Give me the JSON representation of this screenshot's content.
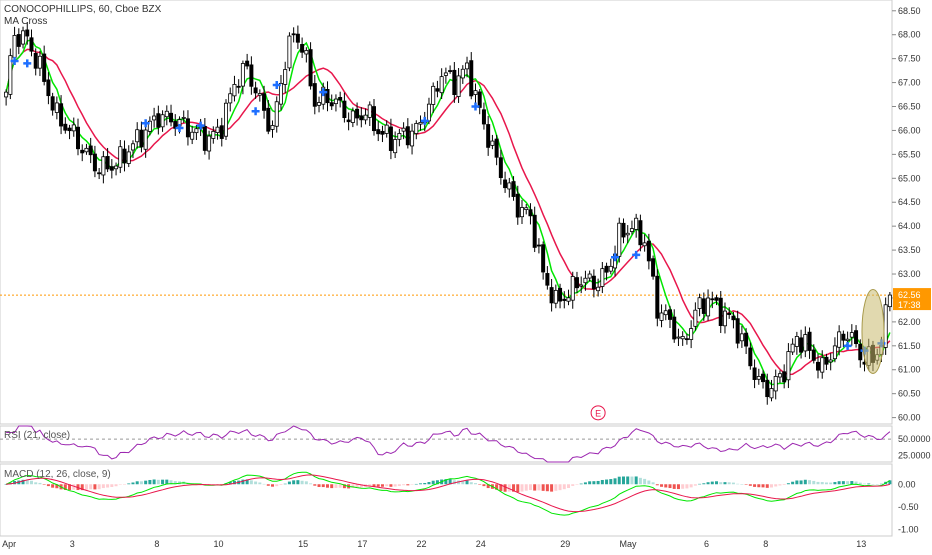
{
  "chart_data": {
    "type": "candlestick",
    "title": "CONOCOPHILLIPS, 60, Cboe BZX",
    "subtitle": "MA Cross",
    "rsi_label": "RSI (21, close)",
    "macd_label": "MACD (12, 26, close, 9)",
    "earnings_marker": "E",
    "price_axis": {
      "ticks": [
        "68.50",
        "68.00",
        "67.50",
        "67.00",
        "66.50",
        "66.00",
        "65.50",
        "65.00",
        "64.50",
        "64.00",
        "63.50",
        "63.00",
        "62.50",
        "62.00",
        "61.50",
        "61.00",
        "60.50",
        "60.00"
      ],
      "ylim": [
        59.95,
        68.6
      ]
    },
    "rsi_axis": {
      "ticks": [
        "50.0000",
        "25.0000"
      ],
      "ylim": [
        15,
        70
      ]
    },
    "macd_axis": {
      "ticks": [
        "0.00",
        "-0.50",
        "-1.00"
      ],
      "ylim": [
        -1.15,
        0.45
      ]
    },
    "x_labels": [
      {
        "text": "Apr",
        "i": 0
      },
      {
        "text": "3",
        "i": 16
      },
      {
        "text": "8",
        "i": 36
      },
      {
        "text": "10",
        "i": 50
      },
      {
        "text": "15",
        "i": 70
      },
      {
        "text": "17",
        "i": 84
      },
      {
        "text": "22",
        "i": 98
      },
      {
        "text": "24",
        "i": 112
      },
      {
        "text": "29",
        "i": 132
      },
      {
        "text": "May",
        "i": 146
      },
      {
        "text": "6",
        "i": 166
      },
      {
        "text": "8",
        "i": 180
      },
      {
        "text": "13",
        "i": 202
      }
    ],
    "last_price": "62.56",
    "last_price_countdown": "17:38",
    "colors": {
      "up": "#ffffff",
      "down": "#000000",
      "wick": "#000000",
      "fast_ma": "#00e600",
      "slow_ma": "#e8174c",
      "cross": "#1e6fff",
      "rsi": "#9c27b0",
      "macd": "#00e600",
      "signal": "#e8174c",
      "hist_up_strong": "#26a69a",
      "hist_up_weak": "#b2dfdb",
      "hist_down_strong": "#ef5350",
      "hist_down_weak": "#ffcdd2",
      "price_line": "#ff9800",
      "highlight": "#c8b96e"
    },
    "anchors": [
      [
        0,
        66.8
      ],
      [
        2,
        68.0
      ],
      [
        5,
        67.9
      ],
      [
        8,
        67.3
      ],
      [
        12,
        66.3
      ],
      [
        16,
        65.9
      ],
      [
        19,
        65.5
      ],
      [
        22,
        65.2
      ],
      [
        26,
        65.3
      ],
      [
        30,
        65.7
      ],
      [
        33,
        66.0
      ],
      [
        36,
        66.3
      ],
      [
        40,
        66.2
      ],
      [
        44,
        66.0
      ],
      [
        48,
        65.8
      ],
      [
        51,
        66.1
      ],
      [
        54,
        67.0
      ],
      [
        57,
        67.3
      ],
      [
        60,
        66.6
      ],
      [
        63,
        66.0
      ],
      [
        66,
        67.5
      ],
      [
        68,
        68.0
      ],
      [
        70,
        67.8
      ],
      [
        73,
        66.6
      ],
      [
        76,
        66.7
      ],
      [
        79,
        66.5
      ],
      [
        82,
        66.2
      ],
      [
        85,
        66.4
      ],
      [
        88,
        66.0
      ],
      [
        91,
        65.8
      ],
      [
        94,
        65.9
      ],
      [
        97,
        66.0
      ],
      [
        100,
        66.5
      ],
      [
        103,
        67.2
      ],
      [
        106,
        67.0
      ],
      [
        109,
        67.3
      ],
      [
        112,
        66.4
      ],
      [
        115,
        65.6
      ],
      [
        118,
        64.9
      ],
      [
        121,
        64.4
      ],
      [
        124,
        64.2
      ],
      [
        127,
        63.0
      ],
      [
        130,
        62.4
      ],
      [
        133,
        62.6
      ],
      [
        136,
        62.9
      ],
      [
        139,
        62.8
      ],
      [
        142,
        63.0
      ],
      [
        145,
        63.8
      ],
      [
        148,
        64.0
      ],
      [
        151,
        63.7
      ],
      [
        154,
        62.3
      ],
      [
        157,
        62.0
      ],
      [
        160,
        61.5
      ],
      [
        163,
        62.2
      ],
      [
        166,
        62.5
      ],
      [
        169,
        62.2
      ],
      [
        172,
        62.0
      ],
      [
        175,
        61.4
      ],
      [
        178,
        60.7
      ],
      [
        181,
        60.6
      ],
      [
        184,
        61.0
      ],
      [
        187,
        61.7
      ],
      [
        190,
        61.4
      ],
      [
        193,
        61.0
      ],
      [
        196,
        61.5
      ],
      [
        199,
        61.8
      ],
      [
        202,
        61.3
      ],
      [
        205,
        61.2
      ],
      [
        207,
        61.6
      ],
      [
        209,
        62.56
      ]
    ],
    "cross_markers": [
      [
        2,
        67.45
      ],
      [
        5,
        67.4
      ],
      [
        33,
        66.15
      ],
      [
        41,
        66.05
      ],
      [
        46,
        66.1
      ],
      [
        59,
        66.4
      ],
      [
        64,
        66.95
      ],
      [
        75,
        66.8
      ],
      [
        99,
        66.2
      ],
      [
        111,
        66.5
      ],
      [
        144,
        63.35
      ],
      [
        149,
        63.4
      ],
      [
        199,
        61.5
      ],
      [
        203,
        61.4
      ],
      [
        207,
        61.55
      ]
    ]
  }
}
